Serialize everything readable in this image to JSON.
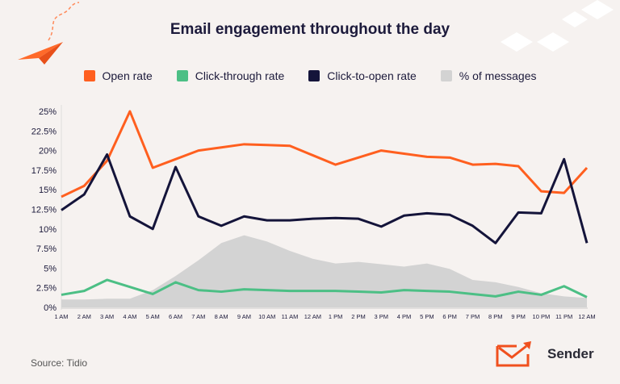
{
  "title": "Email engagement throughout the day",
  "source": "Source: Tidio",
  "brand": "Sender",
  "colors": {
    "open_rate": "#ff5f1f",
    "ctr": "#4cbf85",
    "ctor": "#14143a",
    "messages": "#d3d3d3",
    "background": "#f6f2f0"
  },
  "chart_data": {
    "type": "line",
    "title": "Email engagement throughout the day",
    "categories": [
      "1 AM",
      "2 AM",
      "3 AM",
      "4 AM",
      "5 AM",
      "6 AM",
      "7 AM",
      "8 AM",
      "9 AM",
      "10 AM",
      "11 AM",
      "12 AM",
      "1 PM",
      "2 PM",
      "3 PM",
      "4 PM",
      "5 PM",
      "6 PM",
      "7 PM",
      "8 PM",
      "9 PM",
      "10 PM",
      "11 PM",
      "12 AM"
    ],
    "yticks": [
      "0%",
      "2.5%",
      "5%",
      "7.5%",
      "10%",
      "12.5%",
      "15%",
      "17.5%",
      "20%",
      "22.5%",
      "25%"
    ],
    "ylim": [
      0,
      25
    ],
    "grid": false,
    "legend_placement": "top",
    "series": [
      {
        "name": "Open rate",
        "type": "line",
        "color": "#ff5f1f",
        "values": [
          14.1,
          15.5,
          18.7,
          25.0,
          17.8,
          18.9,
          20.0,
          20.4,
          20.8,
          20.7,
          20.6,
          19.4,
          18.2,
          19.1,
          20.0,
          19.6,
          19.2,
          19.1,
          18.2,
          18.3,
          18.0,
          14.8,
          14.6,
          17.8
        ]
      },
      {
        "name": "Click-through rate",
        "type": "line",
        "color": "#4cbf85",
        "values": [
          1.6,
          2.1,
          3.5,
          2.6,
          1.7,
          3.2,
          2.2,
          2.0,
          2.3,
          2.2,
          2.1,
          2.1,
          2.1,
          2.0,
          1.9,
          2.2,
          2.1,
          2.0,
          1.7,
          1.4,
          2.0,
          1.6,
          2.7,
          1.3
        ]
      },
      {
        "name": "Click-to-open rate",
        "type": "line",
        "color": "#14143a",
        "values": [
          12.4,
          14.4,
          19.5,
          11.6,
          10.0,
          17.9,
          11.6,
          10.4,
          11.6,
          11.1,
          11.1,
          11.3,
          11.4,
          11.3,
          10.3,
          11.7,
          12.0,
          11.8,
          10.4,
          8.2,
          12.1,
          12.0,
          18.9,
          8.2
        ]
      },
      {
        "name": "% of messages",
        "type": "area",
        "color": "#d3d3d3",
        "values": [
          1.0,
          1.0,
          1.1,
          1.1,
          2.2,
          4.0,
          6.0,
          8.2,
          9.2,
          8.4,
          7.2,
          6.2,
          5.6,
          5.8,
          5.5,
          5.2,
          5.6,
          4.9,
          3.5,
          3.2,
          2.6,
          1.8,
          1.4,
          1.2
        ]
      }
    ]
  }
}
